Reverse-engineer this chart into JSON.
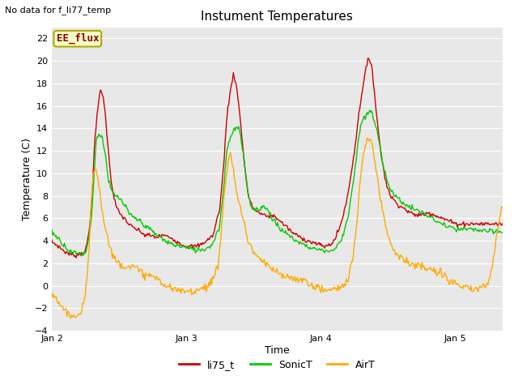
{
  "title": "Instument Temperatures",
  "xlabel": "Time",
  "ylabel": "Temperature (C)",
  "top_left_text": "No data for f_li77_temp",
  "legend_box_text": "EE_flux",
  "ylim": [
    -4,
    23
  ],
  "yticks": [
    -4,
    -2,
    0,
    2,
    4,
    6,
    8,
    10,
    12,
    14,
    16,
    18,
    20,
    22
  ],
  "xtick_labels": [
    "Jan 2",
    "Jan 3",
    "Jan 4",
    "Jan 5"
  ],
  "fig_facecolor": "#ffffff",
  "plot_bg_color": "#e8e8e8",
  "li75_color": "#cc0000",
  "sonic_color": "#00cc00",
  "air_color": "#ffaa00",
  "legend_entries": [
    "li75_t",
    "SonicT",
    "AirT"
  ],
  "legend_colors": [
    "#cc0000",
    "#00cc00",
    "#ffaa00"
  ]
}
